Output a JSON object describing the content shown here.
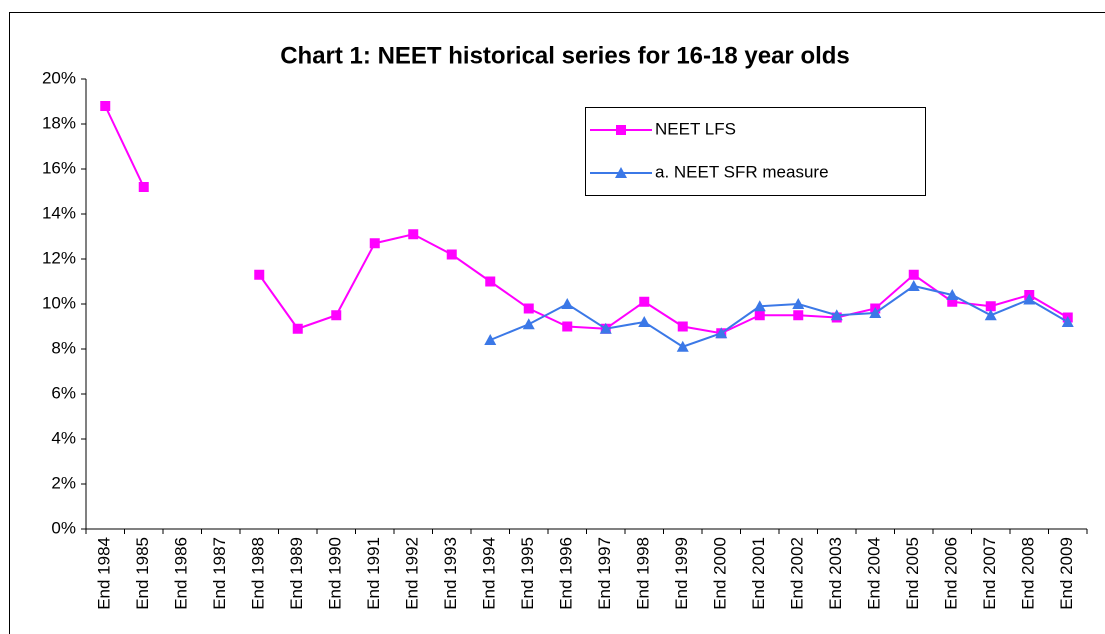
{
  "chart_data": {
    "type": "line",
    "title": "Chart 1: NEET historical series for 16-18 year olds",
    "categories": [
      "End 1984",
      "End 1985",
      "End 1986",
      "End 1987",
      "End 1988",
      "End 1989",
      "End 1990",
      "End 1991",
      "End 1992",
      "End 1993",
      "End 1994",
      "End 1995",
      "End 1996",
      "End 1997",
      "End 1998",
      "End 1999",
      "End 2000",
      "End 2001",
      "End 2002",
      "End 2003",
      "End 2004",
      "End 2005",
      "End 2006",
      "End 2007",
      "End 2008",
      "End 2009"
    ],
    "series": [
      {
        "name": "NEET LFS",
        "color": "#ff00ff",
        "marker": "square",
        "values": [
          18.8,
          15.2,
          null,
          null,
          11.3,
          8.9,
          9.5,
          12.7,
          13.1,
          12.2,
          11.0,
          9.8,
          9.0,
          8.9,
          10.1,
          9.0,
          8.7,
          9.5,
          9.5,
          9.4,
          9.8,
          11.3,
          10.1,
          9.9,
          10.4,
          9.4
        ]
      },
      {
        "name": "a. NEET SFR measure",
        "color": "#3b78e7",
        "marker": "triangle",
        "values": [
          null,
          null,
          null,
          null,
          null,
          null,
          null,
          null,
          null,
          null,
          8.4,
          9.1,
          10.0,
          8.9,
          9.2,
          8.1,
          8.7,
          9.9,
          10.0,
          9.5,
          9.6,
          10.8,
          10.4,
          9.5,
          10.2,
          9.2
        ]
      }
    ],
    "ylim": [
      0,
      20
    ],
    "yticks": [
      {
        "value": 0,
        "label": "0%"
      },
      {
        "value": 2,
        "label": "2%"
      },
      {
        "value": 4,
        "label": "4%"
      },
      {
        "value": 6,
        "label": "6%"
      },
      {
        "value": 8,
        "label": "8%"
      },
      {
        "value": 10,
        "label": "10%"
      },
      {
        "value": 12,
        "label": "12%"
      },
      {
        "value": 14,
        "label": "14%"
      },
      {
        "value": 16,
        "label": "16%"
      },
      {
        "value": 18,
        "label": "18%"
      },
      {
        "value": 20,
        "label": "20%"
      }
    ],
    "grid": false,
    "legend": "top-right"
  }
}
